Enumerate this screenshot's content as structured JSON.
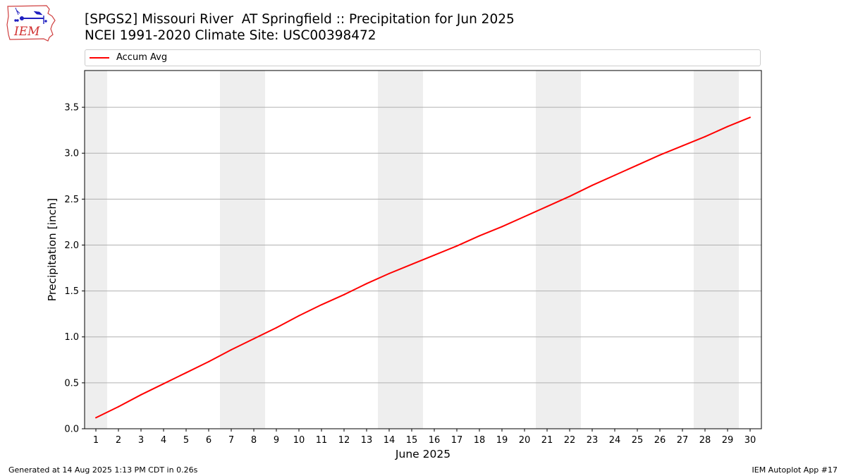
{
  "header": {
    "title_line1": "[SPGS2] Missouri River  AT Springfield :: Precipitation for Jun 2025",
    "title_line2": "NCEI 1991-2020 Climate Site: USC00398472",
    "logo_text": "IEM"
  },
  "legend": {
    "label": "Accum Avg"
  },
  "footer": {
    "left": "Generated at 14 Aug 2025 1:13 PM CDT in 0.26s",
    "right": "IEM Autoplot App #17"
  },
  "colors": {
    "series": "#ff0000",
    "weekend_band": "#eeeeee",
    "grid": "#b0b0b0"
  },
  "chart_data": {
    "type": "line",
    "xlabel": "June 2025",
    "ylabel": "Precipitation [inch]",
    "xlim": [
      0.5,
      30.5
    ],
    "ylim": [
      0.0,
      3.9
    ],
    "yticks": [
      0.0,
      0.5,
      1.0,
      1.5,
      2.0,
      2.5,
      3.0,
      3.5
    ],
    "ytick_labels": [
      "0.0",
      "0.5",
      "1.0",
      "1.5",
      "2.0",
      "2.5",
      "3.0",
      "3.5"
    ],
    "xticks": [
      1,
      2,
      3,
      4,
      5,
      6,
      7,
      8,
      9,
      10,
      11,
      12,
      13,
      14,
      15,
      16,
      17,
      18,
      19,
      20,
      21,
      22,
      23,
      24,
      25,
      26,
      27,
      28,
      29,
      30
    ],
    "grid": "horizontal",
    "weekend_days": [
      1,
      7,
      8,
      14,
      15,
      21,
      22,
      28,
      29
    ],
    "series": [
      {
        "name": "Accum Avg",
        "x": [
          1,
          2,
          3,
          4,
          5,
          6,
          7,
          8,
          9,
          10,
          11,
          12,
          13,
          14,
          15,
          16,
          17,
          18,
          19,
          20,
          21,
          22,
          23,
          24,
          25,
          26,
          27,
          28,
          29,
          30
        ],
        "values": [
          0.12,
          0.24,
          0.37,
          0.49,
          0.61,
          0.73,
          0.86,
          0.98,
          1.1,
          1.23,
          1.35,
          1.46,
          1.58,
          1.69,
          1.79,
          1.89,
          1.99,
          2.1,
          2.2,
          2.31,
          2.42,
          2.53,
          2.65,
          2.76,
          2.87,
          2.98,
          3.08,
          3.18,
          3.29,
          3.39
        ]
      }
    ]
  }
}
